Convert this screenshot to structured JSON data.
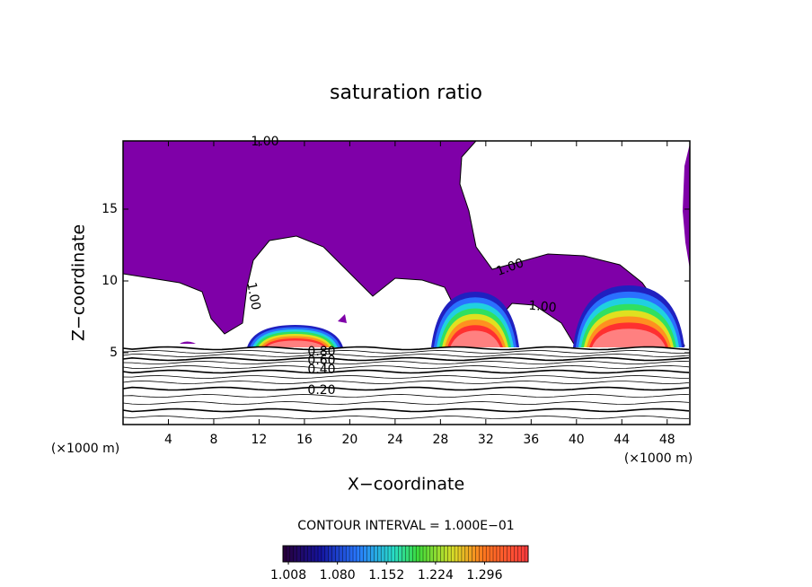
{
  "chart_data": {
    "type": "contour",
    "title": "saturation ratio",
    "x_label": "X−coordinate",
    "y_label": "Z−coordinate",
    "x_unit": "(×1000 m)",
    "xlim": [
      0,
      50
    ],
    "xticks": [
      4,
      8,
      12,
      16,
      20,
      24,
      28,
      32,
      36,
      40,
      44,
      48
    ],
    "ylim": [
      0,
      19.75
    ],
    "yticks": [
      5,
      10,
      15
    ],
    "contour_labels": [
      {
        "value": 1,
        "label": "1.00"
      },
      {
        "value": 1,
        "label": "1.00"
      },
      {
        "value": 1,
        "label": "1.00"
      },
      {
        "value": 1,
        "label": "1.00"
      },
      {
        "value": 0.8,
        "label": "0.80"
      },
      {
        "value": 0.6,
        "label": "0.60"
      },
      {
        "value": 0.4,
        "label": "0.40"
      },
      {
        "value": 0.2,
        "label": "0.20"
      }
    ],
    "contour_interval": "CONTOUR INTERVAL = 1.000E−01",
    "colorbar": {
      "clim": [
        1.0,
        1.36
      ],
      "ticks": [
        {
          "value": 1.008,
          "label": "1.008"
        },
        {
          "value": 1.08,
          "label": "1.080"
        },
        {
          "value": 1.152,
          "label": "1.152"
        },
        {
          "value": 1.224,
          "label": "1.224"
        },
        {
          "value": 1.296,
          "label": "1.296"
        }
      ]
    },
    "fill_color": "#7f00a8"
  }
}
